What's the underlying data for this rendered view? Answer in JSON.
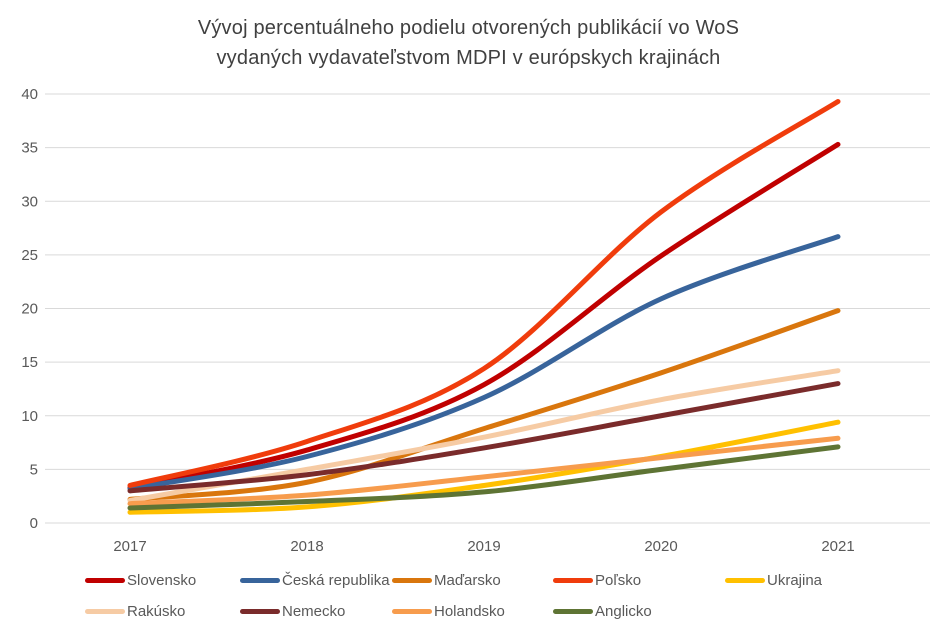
{
  "title": {
    "line1": "Vývoj percentuálneho podielu otvorených publikácií vo WoS",
    "line2": "vydaných vydavateľstvom MDPI v európskych krajinách"
  },
  "chart_data": {
    "type": "line",
    "categories": [
      "2017",
      "2018",
      "2019",
      "2020",
      "2021"
    ],
    "series": [
      {
        "name": "Slovensko",
        "color": "#C00000",
        "values": [
          3.3,
          6.8,
          12.9,
          24.9,
          35.3
        ]
      },
      {
        "name": "Česká republika",
        "color": "#38649B",
        "values": [
          3.2,
          6.2,
          11.7,
          20.9,
          26.7
        ]
      },
      {
        "name": "Maďarsko",
        "color": "#D9760D",
        "values": [
          2.2,
          3.8,
          8.8,
          14.0,
          19.8
        ]
      },
      {
        "name": "Poľsko",
        "color": "#F03C0C",
        "values": [
          3.5,
          7.6,
          14.4,
          29.0,
          39.3
        ]
      },
      {
        "name": "Ukrajina",
        "color": "#FFC000",
        "values": [
          1.0,
          1.5,
          3.5,
          6.2,
          9.4
        ]
      },
      {
        "name": "Rakúsko",
        "color": "#F6CBA4",
        "values": [
          2.1,
          5.0,
          8.0,
          11.5,
          14.2
        ]
      },
      {
        "name": "Nemecko",
        "color": "#7A2B2B",
        "values": [
          3.0,
          4.5,
          7.0,
          10.0,
          13.0
        ]
      },
      {
        "name": "Holandsko",
        "color": "#F79C4D",
        "values": [
          1.8,
          2.6,
          4.3,
          6.1,
          7.9
        ]
      },
      {
        "name": "Anglicko",
        "color": "#5E7434",
        "values": [
          1.4,
          2.0,
          2.9,
          5.0,
          7.1
        ]
      }
    ],
    "yticks": [
      0,
      5,
      10,
      15,
      20,
      25,
      30,
      35,
      40
    ],
    "ylim": [
      0,
      40
    ],
    "grid": "horizontal",
    "legend_position": "bottom",
    "colors": {
      "grid_line": "#D9D9D9",
      "tick_text": "#595959",
      "title_text": "#404040"
    }
  }
}
